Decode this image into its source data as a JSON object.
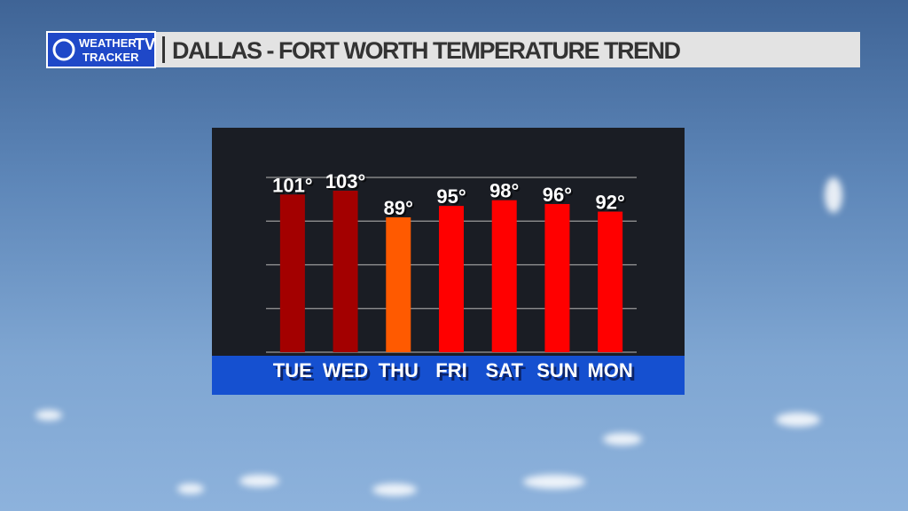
{
  "header": {
    "logo_top": "WEATHER",
    "logo_bottom": "TRACKER",
    "logo_tv": "TV"
  },
  "chart_data": {
    "type": "bar",
    "title": "DALLAS - FORT WORTH TEMPERATURE TREND",
    "categories": [
      "TUE",
      "WED",
      "THU",
      "FRI",
      "SAT",
      "SUN",
      "MON"
    ],
    "values": [
      101,
      103,
      89,
      95,
      98,
      96,
      92
    ],
    "value_labels": [
      "101°",
      "103°",
      "89°",
      "95°",
      "98°",
      "96°",
      "92°"
    ],
    "colors": [
      "#a30000",
      "#a30000",
      "#ff5a00",
      "#ff0000",
      "#ff0000",
      "#ff0000",
      "#ff0000"
    ],
    "ylim": [
      18,
      110
    ],
    "yticks": [
      18,
      41,
      64,
      87,
      110
    ],
    "grid": true
  }
}
